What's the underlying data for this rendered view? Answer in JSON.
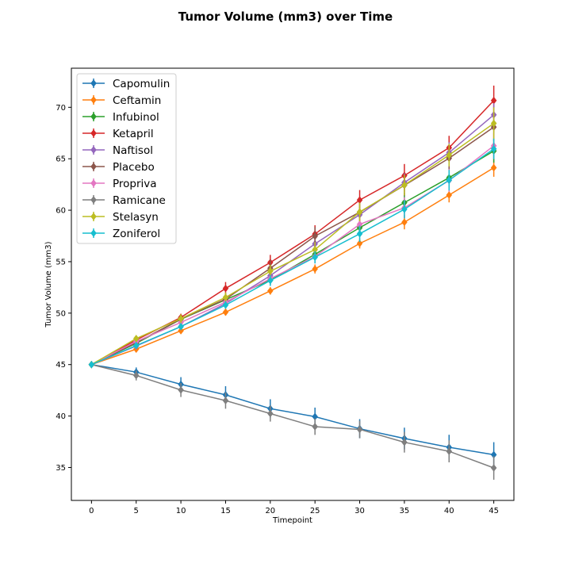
{
  "chart_data": {
    "type": "line",
    "title": "Tumor Volume (mm3) over Time",
    "xlabel": "Timepoint",
    "ylabel": "Tumor Volume (mm3)",
    "x": [
      0,
      5,
      10,
      15,
      20,
      25,
      30,
      35,
      40,
      45
    ],
    "xlim": [
      -2.25,
      47.25
    ],
    "ylim": [
      31.8,
      73.8
    ],
    "xticks": [
      0,
      5,
      10,
      15,
      20,
      25,
      30,
      35,
      40,
      45
    ],
    "yticks": [
      35,
      40,
      45,
      50,
      55,
      60,
      65,
      70
    ],
    "grid": false,
    "legend_position": "upper-left",
    "marker": "diamond",
    "error_bars": true,
    "series": [
      {
        "name": "Capomulin",
        "color": "#1f77b4",
        "values": [
          45.0,
          44.27,
          43.08,
          42.06,
          40.72,
          39.94,
          38.77,
          37.82,
          36.96,
          36.24
        ],
        "errors": [
          0,
          0.45,
          0.7,
          0.84,
          0.91,
          0.88,
          0.93,
          1.05,
          1.22,
          1.22
        ]
      },
      {
        "name": "Ceftamin",
        "color": "#ff7f0e",
        "values": [
          45.0,
          46.5,
          48.29,
          50.09,
          52.16,
          54.29,
          56.77,
          58.83,
          61.47,
          64.13
        ],
        "errors": [
          0,
          0.16,
          0.24,
          0.33,
          0.36,
          0.44,
          0.49,
          0.69,
          0.71,
          0.88
        ]
      },
      {
        "name": "Infubinol",
        "color": "#2ca02c",
        "values": [
          45.0,
          47.06,
          49.4,
          51.3,
          53.2,
          55.72,
          58.3,
          60.74,
          63.16,
          65.76
        ],
        "errors": [
          0,
          0.24,
          0.28,
          0.36,
          0.44,
          0.55,
          0.63,
          0.98,
          1.06,
          1.14
        ]
      },
      {
        "name": "Ketapril",
        "color": "#d62728",
        "values": [
          45.0,
          47.39,
          49.58,
          52.4,
          54.92,
          57.68,
          60.99,
          63.37,
          66.07,
          70.66
        ],
        "errors": [
          0,
          0.26,
          0.36,
          0.62,
          0.74,
          0.86,
          0.97,
          1.12,
          1.16,
          1.45
        ]
      },
      {
        "name": "Naftisol",
        "color": "#9467bd",
        "values": [
          45.0,
          46.8,
          48.69,
          50.93,
          53.64,
          56.73,
          59.56,
          62.69,
          65.6,
          69.27
        ],
        "errors": [
          0,
          0.2,
          0.32,
          0.42,
          0.53,
          0.58,
          0.75,
          0.9,
          1.0,
          1.13
        ]
      },
      {
        "name": "Placebo",
        "color": "#8c564b",
        "values": [
          45.0,
          47.13,
          49.42,
          51.36,
          54.36,
          57.48,
          59.81,
          62.42,
          65.05,
          68.08
        ],
        "errors": [
          0,
          0.22,
          0.4,
          0.61,
          0.84,
          0.88,
          0.93,
          1.02,
          1.27,
          1.35
        ]
      },
      {
        "name": "Propriva",
        "color": "#e377c2",
        "values": [
          45.0,
          47.25,
          49.1,
          51.07,
          53.35,
          55.5,
          58.63,
          60.24,
          62.89,
          66.26
        ],
        "errors": [
          0,
          0.23,
          0.38,
          0.47,
          0.56,
          0.67,
          0.77,
          1.02,
          1.1,
          1.26
        ]
      },
      {
        "name": "Ramicane",
        "color": "#7f7f7f",
        "values": [
          45.0,
          43.94,
          42.53,
          41.5,
          40.24,
          38.97,
          38.7,
          37.45,
          36.57,
          34.96
        ],
        "errors": [
          0,
          0.48,
          0.68,
          0.79,
          0.78,
          0.8,
          0.85,
          1.0,
          1.07,
          1.15
        ]
      },
      {
        "name": "Stelasyn",
        "color": "#bcbd22",
        "values": [
          45.0,
          47.53,
          49.46,
          51.53,
          54.07,
          56.17,
          59.83,
          62.44,
          65.36,
          68.44
        ],
        "errors": [
          0,
          0.24,
          0.43,
          0.49,
          0.62,
          0.74,
          0.9,
          1.0,
          1.1,
          1.56
        ]
      },
      {
        "name": "Zoniferol",
        "color": "#17becf",
        "values": [
          45.0,
          46.85,
          48.69,
          50.78,
          53.17,
          55.43,
          57.71,
          60.09,
          62.92,
          65.96
        ],
        "errors": [
          0,
          0.19,
          0.26,
          0.37,
          0.53,
          0.6,
          0.8,
          0.88,
          1.0,
          1.0
        ]
      }
    ]
  }
}
